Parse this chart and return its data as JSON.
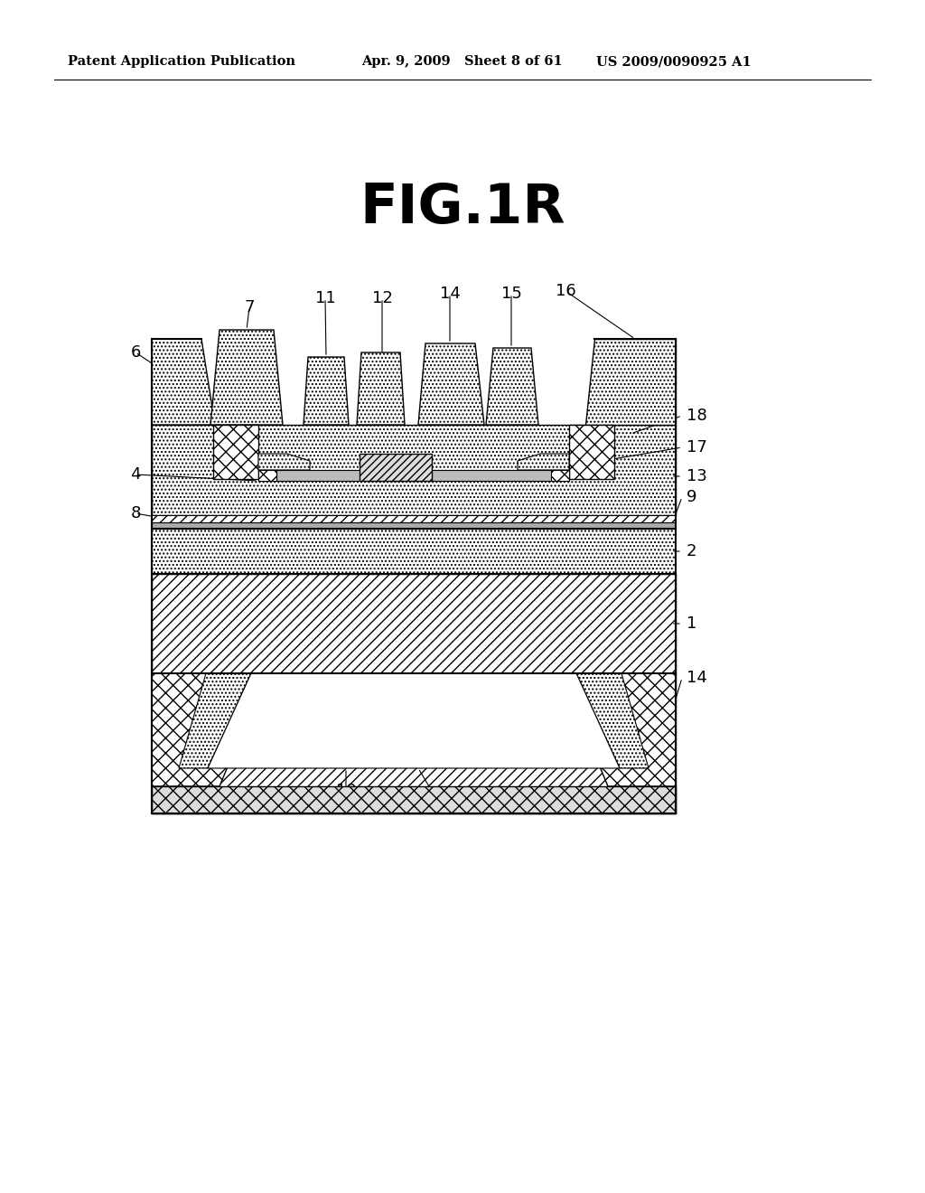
{
  "title": "FIG.1R",
  "header_left": "Patent Application Publication",
  "header_mid": "Apr. 9, 2009   Sheet 8 of 61",
  "header_right": "US 2009/0090925 A1",
  "bg_color": "#ffffff"
}
